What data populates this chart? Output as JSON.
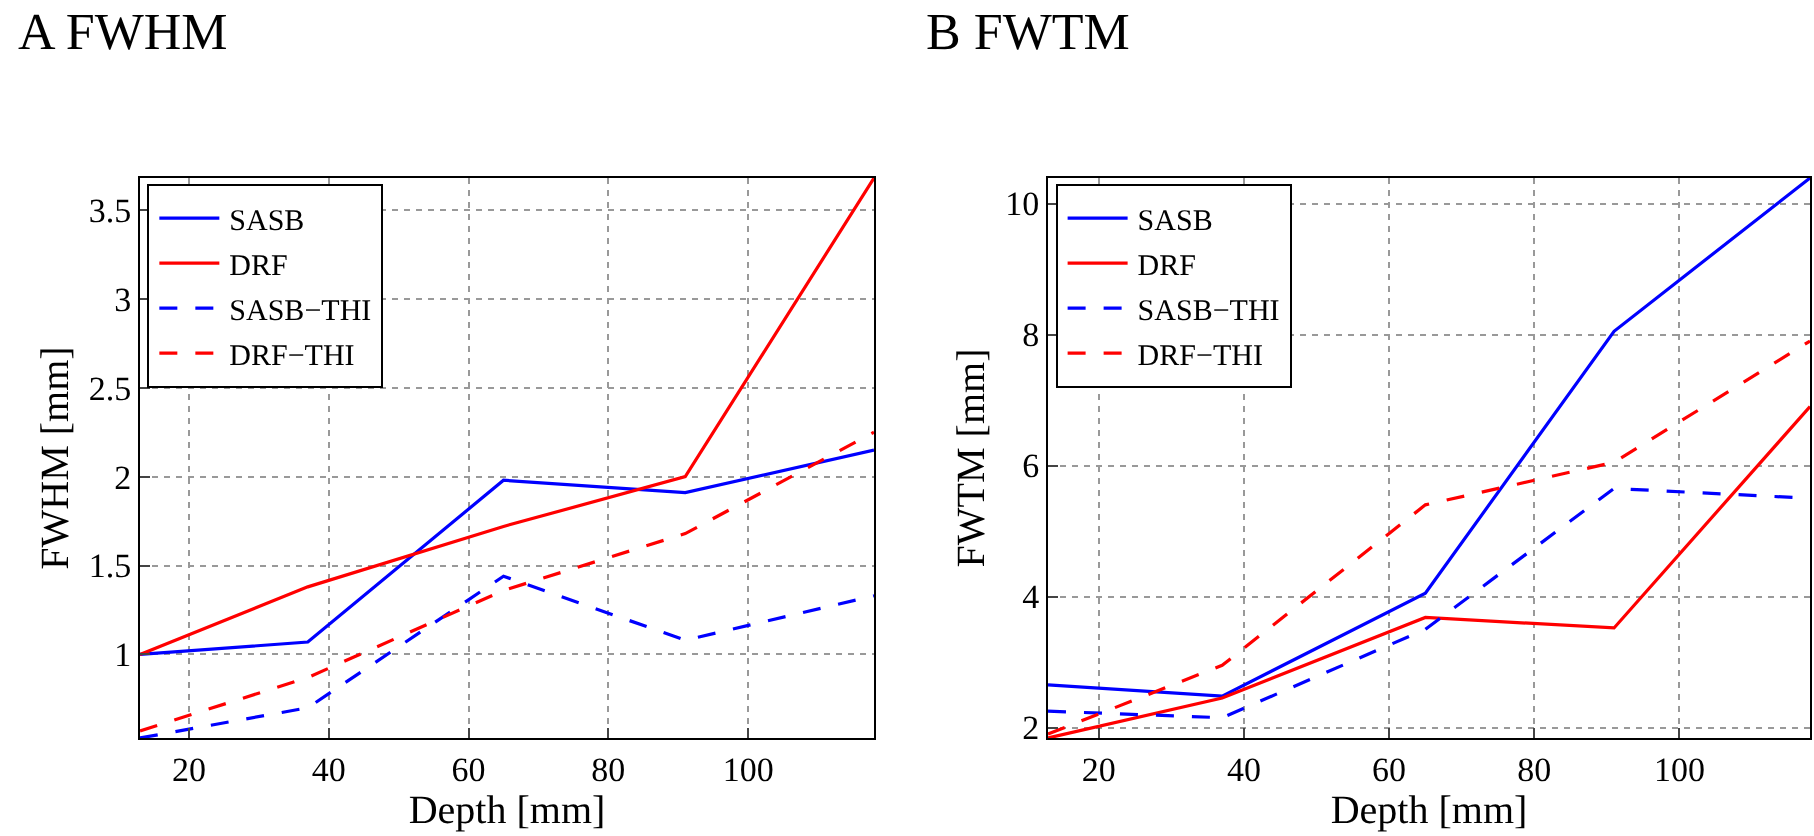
{
  "chart_data": [
    {
      "type": "line",
      "title": "A FWHM",
      "xlabel": "Depth [mm]",
      "ylabel": "FWHM [mm]",
      "x": [
        13,
        37,
        65,
        91,
        118
      ],
      "xlim": [
        13,
        118
      ],
      "xticks": [
        20,
        40,
        60,
        80,
        100
      ],
      "ylim": [
        0.53,
        3.68
      ],
      "yticks": [
        1,
        1.5,
        2,
        2.5,
        3,
        3.5
      ],
      "grid": true,
      "legend": "top left",
      "marker": "none",
      "series": [
        {
          "name": "SASB",
          "color": "#0000ff",
          "line_style": "solid",
          "values": [
            1.0,
            1.07,
            1.98,
            1.91,
            2.15
          ]
        },
        {
          "name": "DRF",
          "color": "#ff0000",
          "line_style": "solid",
          "values": [
            1.0,
            1.38,
            1.72,
            2.0,
            3.68
          ]
        },
        {
          "name": "SASB−THI",
          "color": "#0000ff",
          "line_style": "dashed",
          "values": [
            0.53,
            0.7,
            1.44,
            1.08,
            1.33
          ]
        },
        {
          "name": "DRF−THI",
          "color": "#ff0000",
          "line_style": "dashed",
          "values": [
            0.57,
            0.87,
            1.36,
            1.68,
            2.25
          ]
        }
      ]
    },
    {
      "type": "line",
      "title": "B FWTM",
      "xlabel": "Depth [mm]",
      "ylabel": "FWTM [mm]",
      "x": [
        13,
        37,
        65,
        91,
        118
      ],
      "xlim": [
        13,
        118
      ],
      "xticks": [
        20,
        40,
        60,
        80,
        100
      ],
      "ylim": [
        1.84,
        10.39
      ],
      "yticks": [
        2,
        4,
        6,
        8,
        10
      ],
      "grid": true,
      "legend": "top left",
      "marker": "none",
      "series": [
        {
          "name": "SASB",
          "color": "#0000ff",
          "line_style": "solid",
          "values": [
            2.65,
            2.48,
            4.05,
            8.05,
            10.39
          ]
        },
        {
          "name": "DRF",
          "color": "#ff0000",
          "line_style": "solid",
          "values": [
            1.84,
            2.45,
            3.68,
            3.52,
            6.9
          ]
        },
        {
          "name": "SASB−THI",
          "color": "#0000ff",
          "line_style": "dashed",
          "values": [
            2.25,
            2.15,
            3.5,
            5.65,
            5.5
          ]
        },
        {
          "name": "DRF−THI",
          "color": "#ff0000",
          "line_style": "dashed",
          "values": [
            1.9,
            2.95,
            5.4,
            6.05,
            7.9
          ]
        }
      ]
    }
  ]
}
